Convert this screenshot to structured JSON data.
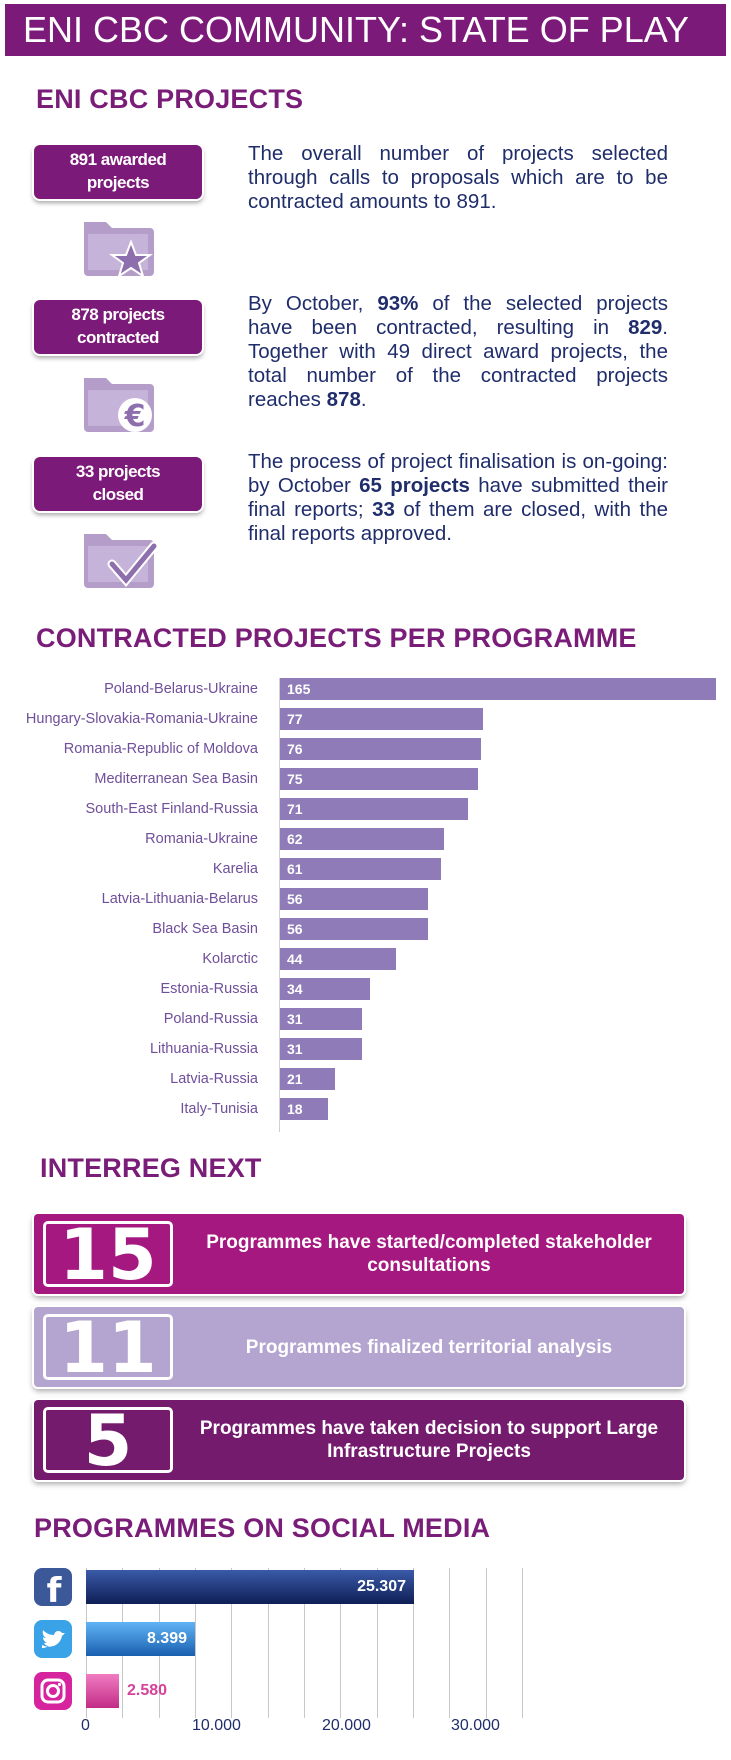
{
  "banner": {
    "title": "ENI CBC COMMUNITY: STATE OF PLAY"
  },
  "projects_section": {
    "title": "ENI CBC PROJECTS",
    "blocks": [
      {
        "badge_line1": "891 awarded",
        "badge_line2": "projects",
        "icon": "folder-star-icon",
        "text": "The overall number of projects selected through calls to proposals which are to be contracted amounts to 891."
      },
      {
        "badge_line1": "878 projects",
        "badge_line2": "contracted",
        "icon": "folder-euro-icon",
        "text_parts": [
          "By October, ",
          "93%",
          " of the selected projects have been contracted, resulting in ",
          "829",
          ". Together with 49 direct award projects, the total number of the contracted projects reaches ",
          "878",
          "."
        ]
      },
      {
        "badge_line1": "33 projects",
        "badge_line2": "closed",
        "icon": "folder-check-icon",
        "text_parts": [
          "The process of project finalisation is on-going: by October ",
          "65 projects",
          " have submitted their final reports; ",
          "33",
          " of them are closed, with the final reports approved."
        ]
      }
    ]
  },
  "contracted_section": {
    "title": "CONTRACTED PROJECTS PER PROGRAMME"
  },
  "chart_data": [
    {
      "type": "bar",
      "orientation": "horizontal",
      "title": "CONTRACTED PROJECTS PER PROGRAMME",
      "categories": [
        "Poland-Belarus-Ukraine",
        "Hungary-Slovakia-Romania-Ukraine",
        "Romania-Republic of Moldova",
        "Mediterranean Sea Basin",
        "South-East Finland-Russia",
        "Romania-Ukraine",
        "Karelia",
        "Latvia-Lithuania-Belarus",
        "Black Sea Basin",
        "Kolarctic",
        "Estonia-Russia",
        "Poland-Russia",
        "Lithuania-Russia",
        "Latvia-Russia",
        "Italy-Tunisia"
      ],
      "values": [
        165,
        77,
        76,
        75,
        71,
        62,
        61,
        56,
        56,
        44,
        34,
        31,
        31,
        21,
        18
      ],
      "color": "#8e7bb7",
      "data_labels": true,
      "xlim": [
        0,
        165
      ]
    },
    {
      "type": "bar",
      "orientation": "horizontal",
      "title": "PROGRAMMES ON SOCIAL MEDIA",
      "categories": [
        "Facebook",
        "Twitter",
        "Instagram"
      ],
      "values": [
        25307,
        8399,
        2580
      ],
      "value_labels": [
        "25.307",
        "8.399",
        "2.580"
      ],
      "colors": [
        "#1c2f6e",
        "#2a7fd4",
        "#d6419a"
      ],
      "xlim": [
        0,
        42000
      ],
      "ticks": [
        "0",
        "10.000",
        "20.000",
        "30.000"
      ],
      "tick_values": [
        0,
        10000,
        20000,
        30000
      ],
      "grid": true
    }
  ],
  "interreg_section": {
    "title": "INTERREG NEXT",
    "items": [
      {
        "number": "15",
        "text": "Programmes have started/completed stakeholder  consultations",
        "color": "#a4187f",
        "num_color": "#ffffff",
        "text_color": "#ffffff"
      },
      {
        "number": "11",
        "text": "Programmes finalized  territorial  analysis",
        "color": "#b3a5cf",
        "num_color": "#ffffff",
        "text_color": "#ffffff"
      },
      {
        "number": "5",
        "text": "Programmes have taken decision to support Large Infrastructure Projects",
        "color": "#741b6e",
        "num_color": "#ffffff",
        "text_color": "#ffffff"
      }
    ]
  },
  "social_section": {
    "title": "PROGRAMMES ON SOCIAL MEDIA",
    "icons": [
      "facebook-icon",
      "twitter-icon",
      "instagram-icon"
    ]
  }
}
